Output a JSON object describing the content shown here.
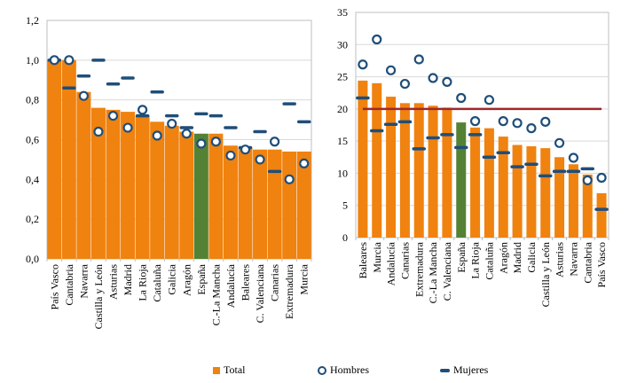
{
  "colors": {
    "total": "#F0820F",
    "espana": "#548235",
    "hombres": "#1F4E79",
    "mujeres": "#1F4E79",
    "target": "#A0282D",
    "grid": "#D9D9D9",
    "axis": "#BFBFBF"
  },
  "legend": {
    "total": "Total",
    "hombres": "Hombres",
    "mujeres": "Mujeres"
  },
  "chart_data": [
    {
      "type": "bar",
      "title": "",
      "ylim": [
        0,
        1.2
      ],
      "yticks": [
        "0,0",
        "0,2",
        "0,4",
        "0,6",
        "0,8",
        "1,0",
        "1,2"
      ],
      "ytick_values": [
        0,
        0.2,
        0.4,
        0.6,
        0.8,
        1.0,
        1.2
      ],
      "grid": true,
      "categories": [
        "País Vasco",
        "Cantabria",
        "Navarra",
        "Castilla y León",
        "Asturias",
        "Madrid",
        "La Rioja",
        "Cataluña",
        "Galicia",
        "Aragón",
        "España",
        "C.-La Mancha",
        "Andalucía",
        "Baleares",
        "C. Valenciana",
        "Canarias",
        "Extremadura",
        "Murcia"
      ],
      "highlight": "España",
      "series": [
        {
          "name": "Total",
          "type": "bar",
          "values": [
            1.0,
            1.0,
            0.84,
            0.76,
            0.75,
            0.74,
            0.72,
            0.69,
            0.67,
            0.64,
            0.63,
            0.63,
            0.57,
            0.56,
            0.55,
            0.55,
            0.54,
            0.54
          ]
        },
        {
          "name": "Hombres",
          "type": "marker-circle",
          "values": [
            1.0,
            1.0,
            0.82,
            0.64,
            0.72,
            0.66,
            0.75,
            0.62,
            0.68,
            0.63,
            0.58,
            0.59,
            0.52,
            0.55,
            0.5,
            0.59,
            0.4,
            0.48
          ]
        },
        {
          "name": "Mujeres",
          "type": "marker-dash",
          "values": [
            1.0,
            0.86,
            0.92,
            1.0,
            0.88,
            0.91,
            0.72,
            0.84,
            0.72,
            0.66,
            0.73,
            0.72,
            0.66,
            0.56,
            0.64,
            0.44,
            0.78,
            0.69
          ]
        }
      ]
    },
    {
      "type": "bar",
      "title": "",
      "ylim": [
        0,
        35
      ],
      "yticks": [
        "0",
        "5",
        "10",
        "15",
        "20",
        "25",
        "30",
        "35"
      ],
      "ytick_values": [
        0,
        5,
        10,
        15,
        20,
        25,
        30,
        35
      ],
      "grid": true,
      "reference_line": 20,
      "categories": [
        "Baleares",
        "Murcia",
        "Andalucía",
        "Canarias",
        "Extremadura",
        "C.-La Mancha",
        "C. Valenciana",
        "España",
        "La Rioja",
        "Cataluña",
        "Aragón",
        "Madrid",
        "Galicia",
        "Castilla y León",
        "Asturias",
        "Navarra",
        "Cantabria",
        "País Vasco"
      ],
      "highlight": "España",
      "series": [
        {
          "name": "Total",
          "type": "bar",
          "values": [
            24.4,
            24.0,
            21.9,
            20.9,
            20.9,
            20.5,
            20.2,
            17.9,
            17.1,
            17.0,
            15.7,
            14.4,
            14.2,
            13.9,
            12.5,
            11.4,
            9.8,
            6.9
          ]
        },
        {
          "name": "Hombres",
          "type": "marker-circle",
          "values": [
            26.9,
            30.8,
            26.0,
            23.9,
            27.7,
            24.8,
            24.2,
            21.7,
            18.1,
            21.4,
            18.1,
            17.8,
            17.0,
            18.0,
            14.7,
            12.4,
            8.9,
            9.3
          ]
        },
        {
          "name": "Mujeres",
          "type": "marker-dash",
          "values": [
            21.7,
            16.6,
            17.6,
            18.0,
            13.8,
            15.5,
            16.0,
            14.0,
            16.0,
            12.5,
            13.2,
            11.0,
            11.4,
            9.6,
            10.3,
            10.3,
            10.7,
            4.4
          ]
        }
      ]
    }
  ]
}
